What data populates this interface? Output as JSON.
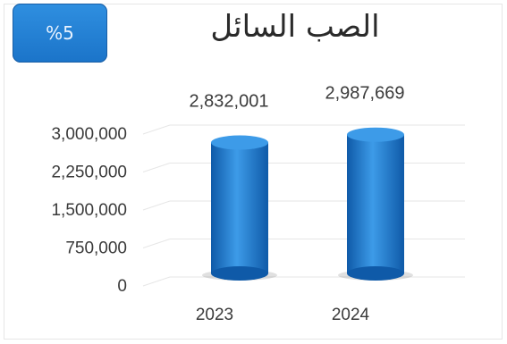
{
  "badge": {
    "text": "%5"
  },
  "chart_data": {
    "type": "bar",
    "style": "3d-cylinder",
    "title": "الصب السائل",
    "categories": [
      "2023",
      "2024"
    ],
    "values": [
      2832001,
      2987669
    ],
    "data_labels": [
      "2,832,001",
      "2,987,669"
    ],
    "yticks": [
      0,
      750000,
      1500000,
      2250000,
      3000000
    ],
    "ytick_labels": [
      "0",
      "750,000",
      "1,500,000",
      "2,250,000",
      "3,000,000"
    ],
    "ylim": [
      0,
      3000000
    ],
    "grid": true,
    "legend": "none",
    "colors": {
      "bar": "#1f7fd6",
      "bar_light": "#3d9be8",
      "bar_dark": "#0f5aa8",
      "grid": "#e6e6e6"
    }
  }
}
